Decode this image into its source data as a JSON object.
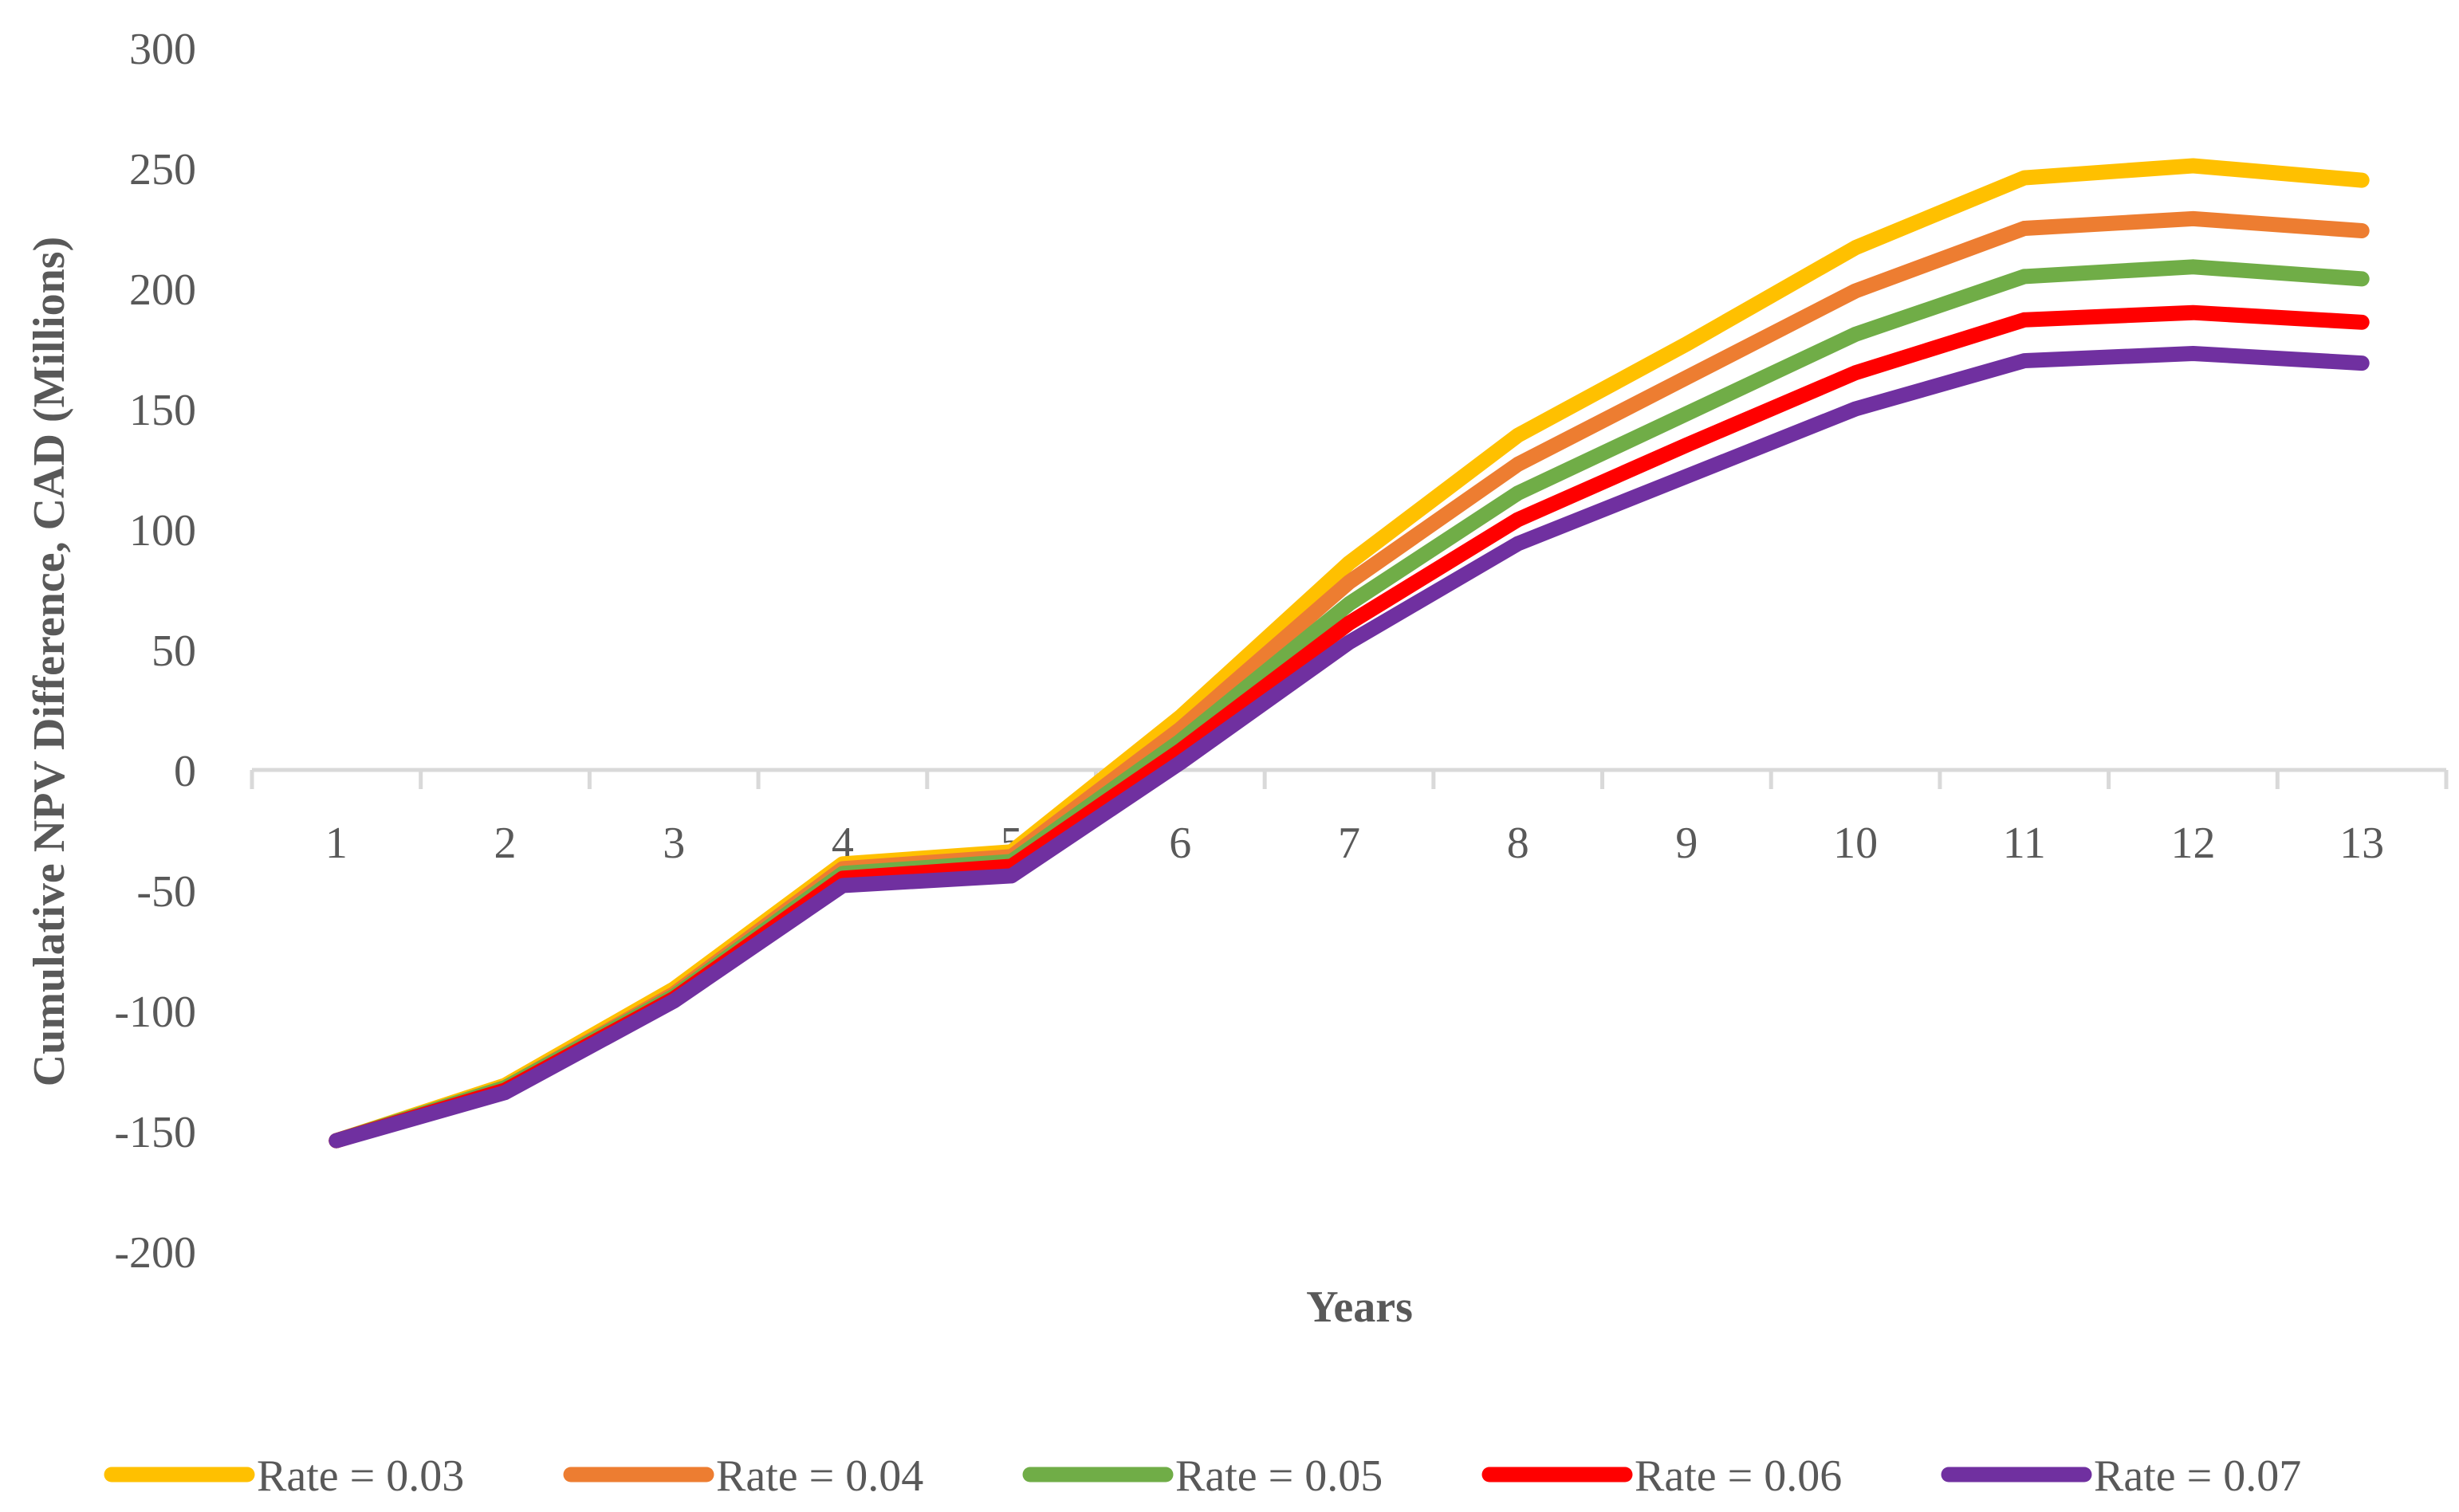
{
  "chart_data": {
    "type": "line",
    "title": "",
    "xlabel": "Years",
    "ylabel": "Cumulative NPV Difference, CAD (Millions)",
    "categories": [
      "1",
      "2",
      "3",
      "4",
      "5",
      "6",
      "7",
      "8",
      "9",
      "10",
      "11",
      "12",
      "13"
    ],
    "ylim": [
      -200,
      300
    ],
    "yticks": [
      300,
      250,
      200,
      150,
      100,
      50,
      0,
      -50,
      -100,
      -150,
      -200
    ],
    "ytick_labels": [
      "300",
      "250",
      "200",
      "150",
      "100",
      "50",
      "0",
      "-50",
      "-100",
      "-150",
      "-200"
    ],
    "grid": false,
    "legend_position": "bottom",
    "series": [
      {
        "name": "Rate = 0.03",
        "color": "#FFC000",
        "values": [
          -154,
          -131,
          -91,
          -39,
          -34,
          22,
          86,
          139,
          177,
          217,
          246,
          251,
          245
        ]
      },
      {
        "name": "Rate = 0.04",
        "color": "#ED7D31",
        "values": [
          -154,
          -132,
          -93,
          -41,
          -36,
          17,
          78,
          127,
          163,
          199,
          225,
          229,
          224
        ]
      },
      {
        "name": "Rate = 0.05",
        "color": "#70AD47",
        "values": [
          -154,
          -132,
          -94,
          -43,
          -38,
          12,
          69,
          115,
          148,
          181,
          205,
          209,
          204
        ]
      },
      {
        "name": "Rate = 0.06",
        "color": "#FF0000",
        "values": [
          -154,
          -133,
          -95,
          -45,
          -40,
          8,
          61,
          104,
          135,
          165,
          187,
          190,
          186
        ]
      },
      {
        "name": "Rate = 0.07",
        "color": "#7030A0",
        "values": [
          -154,
          -134,
          -96,
          -48,
          -44,
          3,
          53,
          94,
          122,
          150,
          170,
          173,
          169
        ]
      }
    ]
  }
}
